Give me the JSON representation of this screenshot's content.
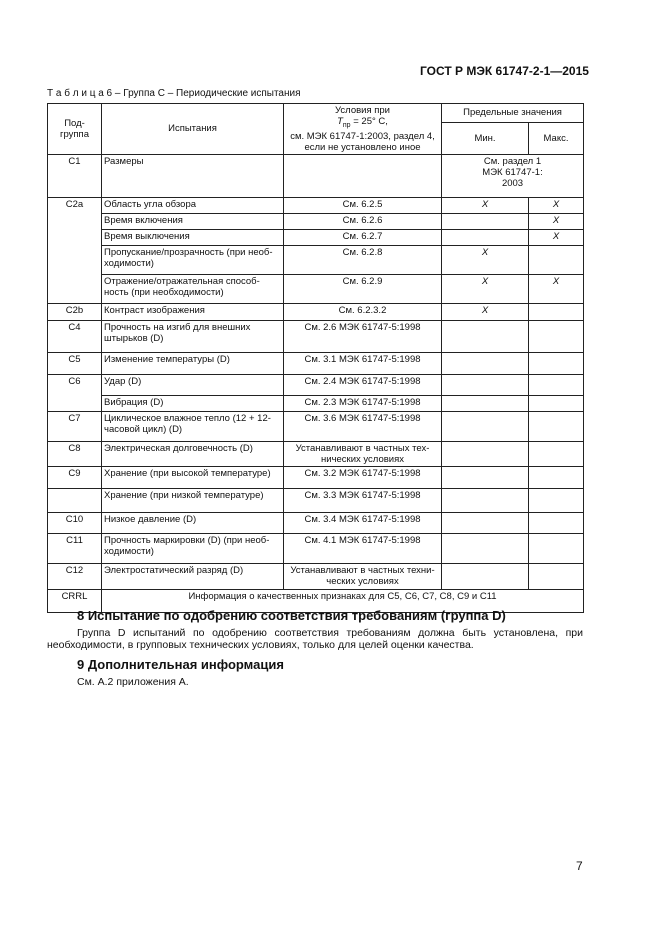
{
  "header": {
    "standard": "ГОСТ Р МЭК 61747-2-1—2015"
  },
  "table": {
    "caption": "Т а б л и ц а 6 – Группа С – Периодические испытания",
    "head": {
      "subgroup": "Под-\nгруппа",
      "test": "Испытания",
      "conditions_pre": "Условия при",
      "conditions_t": "T",
      "conditions_sub": "пр",
      "conditions_post": " = 25° С,\nсм. МЭК 61747-1:2003, раздел 4,\nесли не установлено иное",
      "limits": "Предельные значения",
      "min": "Мин.",
      "max": "Макс."
    },
    "rows": [
      {
        "subgroup": "C1",
        "test": "Размеры",
        "limits": "См. раздел 1\nМЭК 61747-1:\n2003"
      },
      {
        "subgroup": "C2a",
        "test": "Область угла обзора",
        "condition": "См. 6.2.5",
        "min": "X",
        "max": "X"
      },
      {
        "test": "Время включения",
        "condition": "См. 6.2.6",
        "max": "X"
      },
      {
        "test": "Время выключения",
        "condition": "См. 6.2.7",
        "max": "X"
      },
      {
        "test": "Пропускание/прозрачность (при необ-\nходимости)",
        "condition": "См. 6.2.8",
        "min": "X"
      },
      {
        "test": "Отражение/отражательная способ-\nность (при необходимости)",
        "condition": "См. 6.2.9",
        "min": "X",
        "max": "X"
      },
      {
        "subgroup": "C2b",
        "test": "Контраст изображения",
        "condition": "См. 6.2.3.2",
        "min": "X"
      },
      {
        "subgroup": "C4",
        "test": "Прочность на изгиб для внешних\nштырьков (D)",
        "condition": "См. 2.6 МЭК 61747-5:1998"
      },
      {
        "subgroup": "C5",
        "test": "Изменение температуры (D)",
        "condition": "См. 3.1 МЭК 61747-5:1998"
      },
      {
        "subgroup": "C6",
        "test": "Удар (D)",
        "condition": "См. 2.4 МЭК 61747-5:1998"
      },
      {
        "test": "Вибрация (D)",
        "condition": "См. 2.3 МЭК 61747-5:1998"
      },
      {
        "subgroup": "C7",
        "test": "Циклическое влажное тепло (12 + 12-\nчасовой цикл) (D)",
        "condition": "См. 3.6 МЭК 61747-5:1998"
      },
      {
        "subgroup": "C8",
        "test": "Электрическая долговечность (D)",
        "condition": "Устанавливают в частных тех-\nнических условиях"
      },
      {
        "subgroup": "C9",
        "test": "Хранение (при высокой температуре)",
        "condition": "См. 3.2 МЭК 61747-5:1998"
      },
      {
        "test": "Хранение (при низкой температуре)",
        "condition": "См. 3.3 МЭК 61747-5:1998"
      },
      {
        "subgroup": "C10",
        "test": "Низкое давление (D)",
        "condition": "См. 3.4 МЭК 61747-5:1998"
      },
      {
        "subgroup": "C11",
        "test": "Прочность маркировки (D) (при необ-\nходимости)",
        "condition": "См. 4.1 МЭК 61747-5:1998"
      },
      {
        "subgroup": "C12",
        "test": "Электростатический разряд (D)",
        "condition": "Устанавливают в частных техни-\nческих условиях"
      },
      {
        "subgroup": "CRRL",
        "note": "Информация о качественных признаках для C5, C6, C7, C8, C9 и C11"
      }
    ]
  },
  "sections": [
    {
      "heading": "8 Испытание по одобрению соответствия требованиям (группа D)",
      "text": "Группа D испытаний по одобрению соответствия требованиям должна быть установлена, при необходимости, в групповых технических условиях, только для целей оценки качества."
    },
    {
      "heading": "9 Дополнительная информация",
      "text": "См. А.2 приложения А."
    }
  ],
  "footer": {
    "page": "7"
  }
}
